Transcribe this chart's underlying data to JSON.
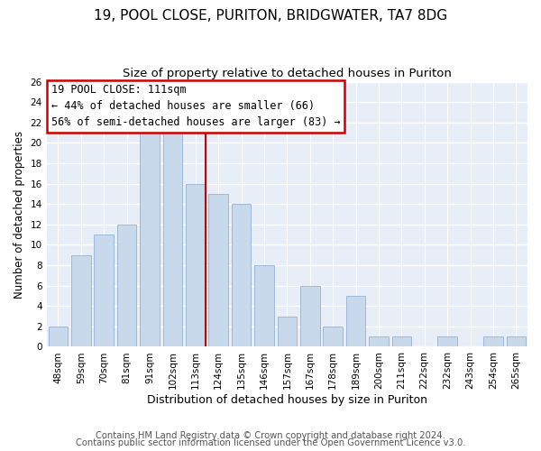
{
  "title1": "19, POOL CLOSE, PURITON, BRIDGWATER, TA7 8DG",
  "title2": "Size of property relative to detached houses in Puriton",
  "xlabel": "Distribution of detached houses by size in Puriton",
  "ylabel": "Number of detached properties",
  "bar_labels": [
    "48sqm",
    "59sqm",
    "70sqm",
    "81sqm",
    "91sqm",
    "102sqm",
    "113sqm",
    "124sqm",
    "135sqm",
    "146sqm",
    "157sqm",
    "167sqm",
    "178sqm",
    "189sqm",
    "200sqm",
    "211sqm",
    "222sqm",
    "232sqm",
    "243sqm",
    "254sqm",
    "265sqm"
  ],
  "bar_values": [
    2,
    9,
    11,
    12,
    21,
    21,
    16,
    15,
    14,
    8,
    3,
    6,
    2,
    5,
    1,
    1,
    0,
    1,
    0,
    1,
    1
  ],
  "bar_color": "#c9d9ec",
  "bar_edge_color": "#a0b8d8",
  "reference_line_label": "113sqm",
  "reference_line_color": "#cc0000",
  "annotation_title": "19 POOL CLOSE: 111sqm",
  "annotation_line1": "← 44% of detached houses are smaller (66)",
  "annotation_line2": "56% of semi-detached houses are larger (83) →",
  "annotation_box_color": "#ffffff",
  "annotation_box_edge_color": "#cc0000",
  "ylim": [
    0,
    26
  ],
  "yticks": [
    0,
    2,
    4,
    6,
    8,
    10,
    12,
    14,
    16,
    18,
    20,
    22,
    24,
    26
  ],
  "footer1": "Contains HM Land Registry data © Crown copyright and database right 2024.",
  "footer2": "Contains public sector information licensed under the Open Government Licence v3.0.",
  "plot_bg_color": "#e8eef8",
  "fig_bg_color": "#ffffff",
  "grid_color": "#ffffff",
  "title1_fontsize": 11,
  "title2_fontsize": 9.5,
  "xlabel_fontsize": 9,
  "ylabel_fontsize": 8.5,
  "tick_fontsize": 7.5,
  "footer_fontsize": 7.2,
  "ann_fontsize": 8.5
}
